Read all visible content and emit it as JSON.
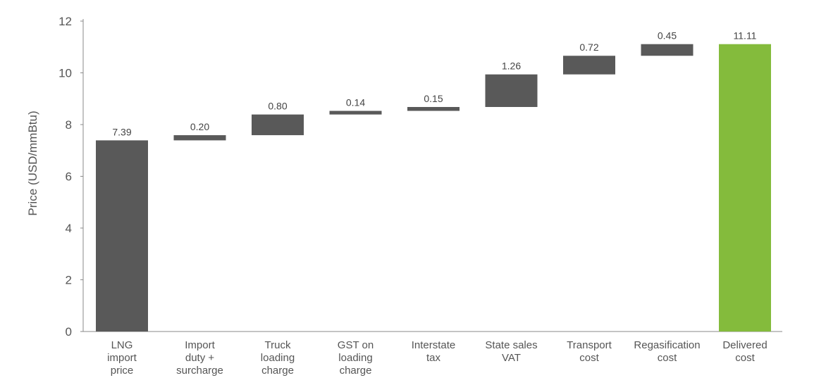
{
  "chart_data": {
    "type": "bar",
    "subtype": "waterfall",
    "ylabel": "Price (USD/mmBtu)",
    "xlabel": "",
    "ylim": [
      0,
      12
    ],
    "yticks": [
      "0",
      "2",
      "4",
      "6",
      "8",
      "10",
      "12"
    ],
    "grid": false,
    "categories": [
      [
        "LNG",
        "import",
        "price"
      ],
      [
        "Import",
        "duty +",
        "surcharge"
      ],
      [
        "Truck",
        "loading",
        "charge"
      ],
      [
        "GST on",
        "loading",
        "charge"
      ],
      [
        "Interstate",
        "tax"
      ],
      [
        "State sales",
        "VAT"
      ],
      [
        "Transport",
        "cost"
      ],
      [
        "Regasification",
        "cost"
      ],
      [
        "Delivered",
        "cost"
      ]
    ],
    "values": [
      7.39,
      0.2,
      0.8,
      0.14,
      0.15,
      1.26,
      0.72,
      0.45,
      11.11
    ],
    "value_labels": [
      "7.39",
      "0.20",
      "0.80",
      "0.14",
      "0.15",
      "1.26",
      "0.72",
      "0.45",
      "11.11"
    ],
    "bar_kind": [
      "total",
      "increment",
      "increment",
      "increment",
      "increment",
      "increment",
      "increment",
      "increment",
      "total"
    ],
    "colors": {
      "increment": "#595959",
      "start": "#595959",
      "total": "#84bb3c",
      "axis": "#8a8a8a"
    }
  }
}
